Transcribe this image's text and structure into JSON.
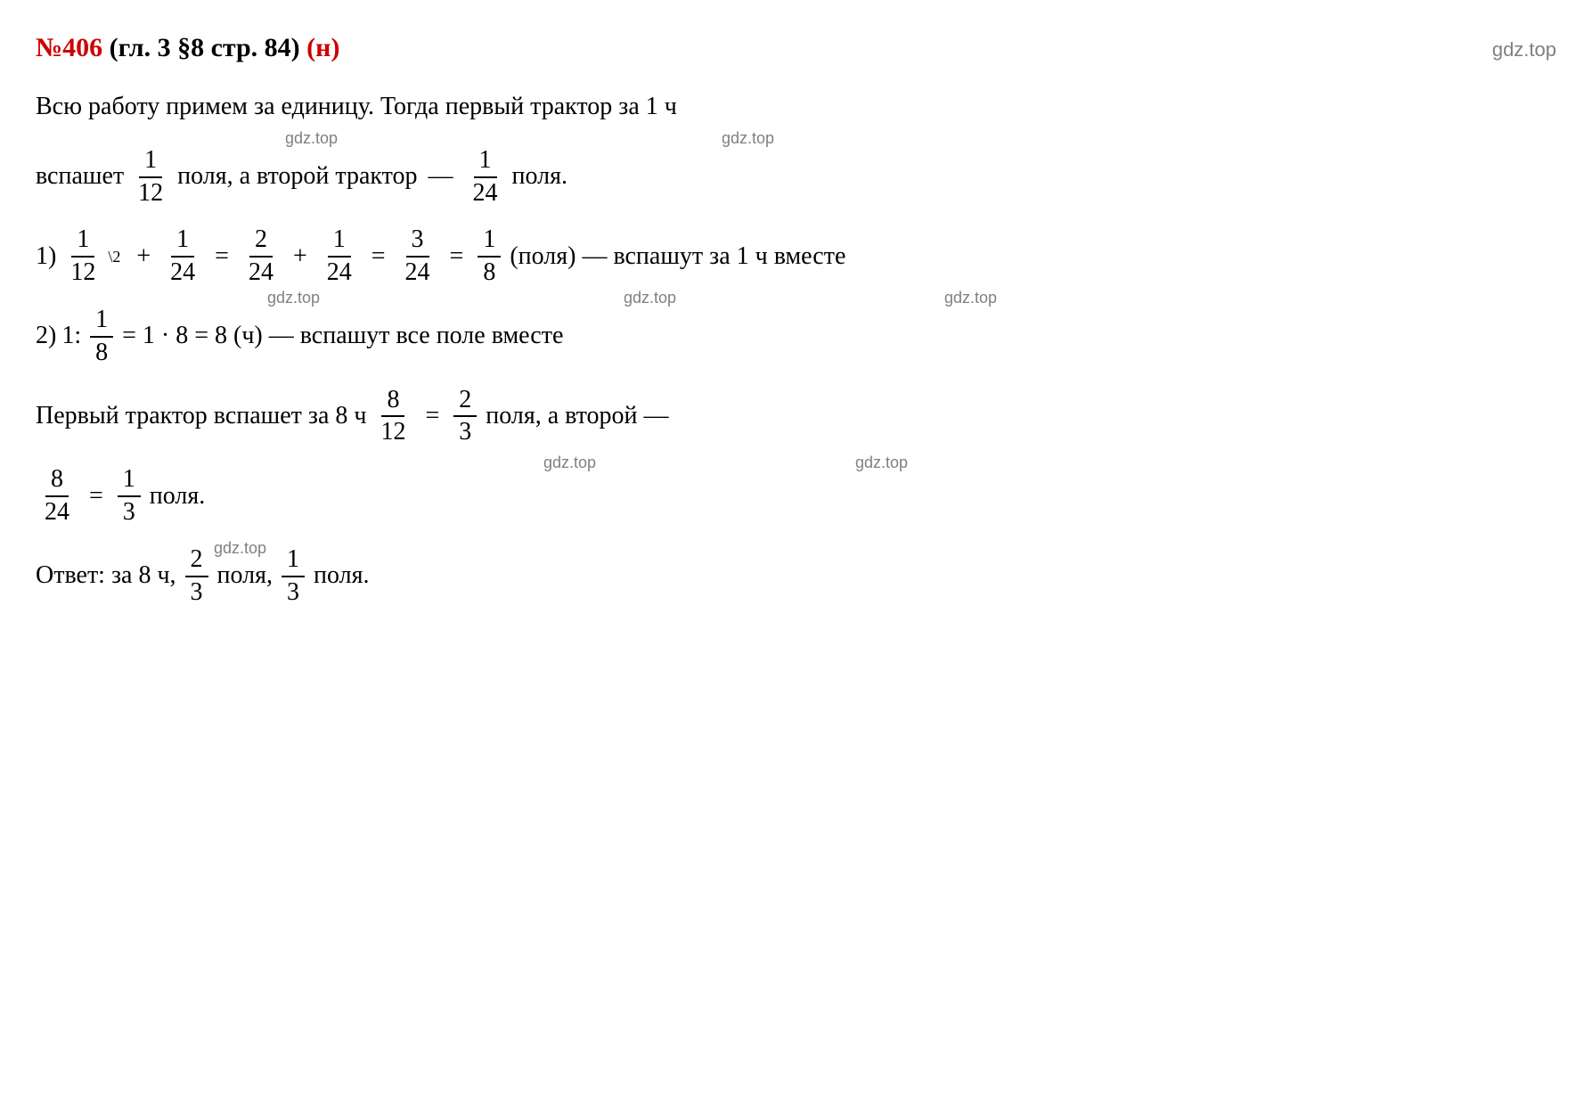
{
  "colors": {
    "red": "#cc0000",
    "black": "#000000",
    "gray": "#808080",
    "bg": "#ffffff"
  },
  "fontsize": {
    "body": 28,
    "title": 30,
    "watermark": 22,
    "sup": 18
  },
  "title": {
    "num": "№406",
    "paren": "(гл. 3 §8 стр. 84)",
    "suffix": "(н)"
  },
  "watermark": "gdz.top",
  "intro": "Всю работу примем за единицу. Тогда первый трактор за 1 ч",
  "line2": {
    "pre": "вспашет",
    "f1": {
      "n": "1",
      "d": "12"
    },
    "mid": "поля, а второй трактор",
    "dash": "—",
    "f2": {
      "n": "1",
      "d": "24"
    },
    "post": "поля."
  },
  "step1": {
    "label": "1)",
    "f1": {
      "n": "1",
      "d": "12"
    },
    "sup": "\\2",
    "plus": "+",
    "f2": {
      "n": "1",
      "d": "24"
    },
    "eq": "=",
    "f3": {
      "n": "2",
      "d": "24"
    },
    "f4": {
      "n": "1",
      "d": "24"
    },
    "f5": {
      "n": "3",
      "d": "24"
    },
    "f6": {
      "n": "1",
      "d": "8"
    },
    "tail": "(поля) — вспашут  за 1 ч вместе"
  },
  "step2": {
    "label": "2)",
    "pre": "1:",
    "f1": {
      "n": "1",
      "d": "8"
    },
    "mid1": "= 1 · 8 = 8 (ч) — вспашут все поле вместе"
  },
  "line5": {
    "pre": "Первый трактор вспашет за 8 ч",
    "f1": {
      "n": "8",
      "d": "12"
    },
    "eq": "=",
    "f2": {
      "n": "2",
      "d": "3"
    },
    "mid": "поля, а второй —"
  },
  "line6": {
    "f1": {
      "n": "8",
      "d": "24"
    },
    "eq": "=",
    "f2": {
      "n": "1",
      "d": "3"
    },
    "post": "поля."
  },
  "answer": {
    "pre": "Ответ: за 8 ч,",
    "f1": {
      "n": "2",
      "d": "3"
    },
    "mid": "поля,",
    "f2": {
      "n": "1",
      "d": "3"
    },
    "post": "поля."
  }
}
